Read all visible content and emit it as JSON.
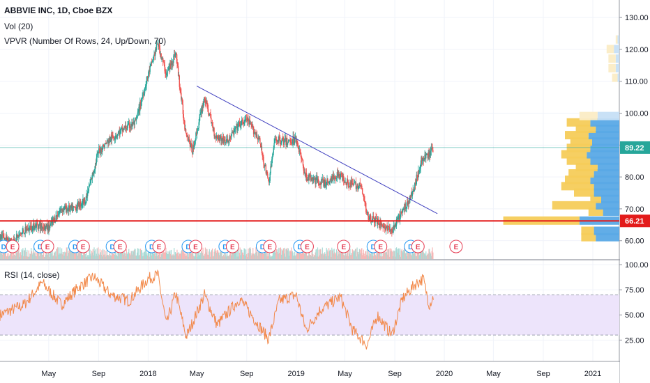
{
  "legend": {
    "title": "ABBVIE INC, 1D, Cboe BZX",
    "vol": "Vol (20)",
    "vpvr": "VPVR (Number Of Rows, 24, Up/Down, 70)",
    "rsi": "RSI (14, close)"
  },
  "colors": {
    "up": "#26a69a",
    "down": "#ef5350",
    "trendline": "#3f3fbf",
    "support": "#e31b1b",
    "last_price_line": "#26a69a",
    "rsi_line": "#f2894a",
    "rsi_band": "#ede4fb",
    "vp_up": "#5aa9e6",
    "vp_down": "#f5cc5a",
    "dividend": "#2196f3",
    "earnings": "#e53950"
  },
  "chart_data": [
    {
      "type": "candlestick",
      "name": "ABBVIE INC",
      "y_axis_ticks": [
        "60.00",
        "70.00",
        "80.00",
        "90.00",
        "100.00",
        "110.00",
        "120.00",
        "130.00"
      ],
      "ylim": [
        56,
        132
      ],
      "x_axis_ticks": [
        "May",
        "Sep",
        "2018",
        "May",
        "Sep",
        "2019",
        "May",
        "Sep",
        "2020",
        "May",
        "Sep",
        "2021"
      ],
      "price_path": [
        [
          "2017-01-01",
          61
        ],
        [
          "2017-02-01",
          60
        ],
        [
          "2017-03-01",
          63
        ],
        [
          "2017-04-01",
          65
        ],
        [
          "2017-05-01",
          64
        ],
        [
          "2017-06-01",
          70
        ],
        [
          "2017-07-01",
          70
        ],
        [
          "2017-08-01",
          73
        ],
        [
          "2017-09-01",
          88
        ],
        [
          "2017-10-01",
          92
        ],
        [
          "2017-11-01",
          95
        ],
        [
          "2017-12-01",
          97
        ],
        [
          "2018-01-01",
          112
        ],
        [
          "2018-01-25",
          122
        ],
        [
          "2018-02-15",
          112
        ],
        [
          "2018-03-10",
          119
        ],
        [
          "2018-04-01",
          96
        ],
        [
          "2018-04-20",
          88
        ],
        [
          "2018-05-20",
          105
        ],
        [
          "2018-06-15",
          93
        ],
        [
          "2018-07-15",
          91
        ],
        [
          "2018-08-10",
          96
        ],
        [
          "2018-09-01",
          98
        ],
        [
          "2018-10-01",
          92
        ],
        [
          "2018-10-25",
          78
        ],
        [
          "2018-11-10",
          92
        ],
        [
          "2018-12-10",
          91
        ],
        [
          "2019-01-01",
          92
        ],
        [
          "2019-01-25",
          80
        ],
        [
          "2019-02-15",
          79
        ],
        [
          "2019-03-15",
          78
        ],
        [
          "2019-04-15",
          81
        ],
        [
          "2019-05-10",
          78
        ],
        [
          "2019-06-10",
          77
        ],
        [
          "2019-06-25",
          68
        ],
        [
          "2019-07-20",
          66
        ],
        [
          "2019-08-10",
          64
        ],
        [
          "2019-08-25",
          63
        ],
        [
          "2019-09-15",
          68
        ],
        [
          "2019-10-15",
          75
        ],
        [
          "2019-11-05",
          85
        ],
        [
          "2019-11-25",
          87
        ],
        [
          "2019-12-05",
          89.2
        ]
      ],
      "last_price": "89.22",
      "support_level": "66.21",
      "support_value": 66.21,
      "trendline": [
        [
          "2018-05-01",
          108.5
        ],
        [
          "2019-12-15",
          68.5
        ]
      ],
      "event_markers": [
        {
          "date": "2017-01-10",
          "label": "D",
          "kind": "dividend"
        },
        {
          "date": "2017-02-01",
          "label": "E",
          "kind": "earnings"
        },
        {
          "date": "2017-04-10",
          "label": "D",
          "kind": "dividend"
        },
        {
          "date": "2017-04-28",
          "label": "E",
          "kind": "earnings"
        },
        {
          "date": "2017-07-05",
          "label": "D",
          "kind": "dividend"
        },
        {
          "date": "2017-07-25",
          "label": "E",
          "kind": "earnings"
        },
        {
          "date": "2017-10-05",
          "label": "D",
          "kind": "dividend"
        },
        {
          "date": "2017-10-24",
          "label": "E",
          "kind": "earnings"
        },
        {
          "date": "2018-01-10",
          "label": "D",
          "kind": "dividend"
        },
        {
          "date": "2018-01-28",
          "label": "E",
          "kind": "earnings"
        },
        {
          "date": "2018-04-10",
          "label": "D",
          "kind": "dividend"
        },
        {
          "date": "2018-04-28",
          "label": "E",
          "kind": "earnings"
        },
        {
          "date": "2018-07-10",
          "label": "D",
          "kind": "dividend"
        },
        {
          "date": "2018-07-28",
          "label": "E",
          "kind": "earnings"
        },
        {
          "date": "2018-10-10",
          "label": "D",
          "kind": "dividend"
        },
        {
          "date": "2018-10-28",
          "label": "E",
          "kind": "earnings"
        },
        {
          "date": "2019-01-10",
          "label": "D",
          "kind": "dividend"
        },
        {
          "date": "2019-01-28",
          "label": "E",
          "kind": "earnings"
        },
        {
          "date": "2019-04-28",
          "label": "E",
          "kind": "earnings"
        },
        {
          "date": "2019-07-10",
          "label": "D",
          "kind": "dividend"
        },
        {
          "date": "2019-07-28",
          "label": "E",
          "kind": "earnings"
        },
        {
          "date": "2019-10-10",
          "label": "D",
          "kind": "dividend"
        },
        {
          "date": "2019-10-28",
          "label": "E",
          "kind": "earnings"
        },
        {
          "date": "2020-01-30",
          "label": "E",
          "kind": "earnings"
        }
      ],
      "volume_profile": {
        "rows": [
          {
            "price": 61,
            "up": 13,
            "down": 8
          },
          {
            "price": 63,
            "up": 14,
            "down": 7
          },
          {
            "price": 66.2,
            "up": 22,
            "down": 42
          },
          {
            "price": 69,
            "up": 9,
            "down": 8
          },
          {
            "price": 71,
            "up": 13,
            "down": 24
          },
          {
            "price": 73,
            "up": 10,
            "down": 6
          },
          {
            "price": 75,
            "up": 14,
            "down": 11
          },
          {
            "price": 77,
            "up": 14,
            "down": 18
          },
          {
            "price": 79,
            "up": 16,
            "down": 14
          },
          {
            "price": 81,
            "up": 14,
            "down": 14
          },
          {
            "price": 83,
            "up": 12,
            "down": 12
          },
          {
            "price": 85,
            "up": 16,
            "down": 13
          },
          {
            "price": 87,
            "up": 18,
            "down": 14
          },
          {
            "price": 89,
            "up": 16,
            "down": 13
          },
          {
            "price": 91,
            "up": 15,
            "down": 12
          },
          {
            "price": 93,
            "up": 17,
            "down": 13
          },
          {
            "price": 95,
            "up": 13,
            "down": 11
          },
          {
            "price": 97,
            "up": 16,
            "down": 13
          },
          {
            "price": 99,
            "up": 12,
            "down": 10
          },
          {
            "price": 111,
            "up": 1,
            "down": 3
          },
          {
            "price": 114,
            "up": 2,
            "down": 4
          },
          {
            "price": 117,
            "up": 2,
            "down": 4
          },
          {
            "price": 120,
            "up": 3,
            "down": 4
          },
          {
            "price": 123,
            "up": 1,
            "down": 1
          }
        ]
      }
    },
    {
      "type": "line",
      "name": "RSI",
      "y_axis_ticks": [
        "25.00",
        "50.00",
        "75.00",
        "100.00"
      ],
      "ylim": [
        10,
        100
      ],
      "band": [
        30,
        70
      ],
      "rsi_path": [
        [
          "2017-01-01",
          50
        ],
        [
          "2017-03-01",
          60
        ],
        [
          "2017-04-15",
          82
        ],
        [
          "2017-06-01",
          60
        ],
        [
          "2017-07-15",
          78
        ],
        [
          "2017-08-20",
          88
        ],
        [
          "2017-10-01",
          70
        ],
        [
          "2017-11-15",
          64
        ],
        [
          "2018-01-01",
          86
        ],
        [
          "2018-01-25",
          90
        ],
        [
          "2018-02-15",
          40
        ],
        [
          "2018-03-10",
          72
        ],
        [
          "2018-04-05",
          28
        ],
        [
          "2018-05-20",
          70
        ],
        [
          "2018-06-20",
          40
        ],
        [
          "2018-08-15",
          66
        ],
        [
          "2018-10-25",
          26
        ],
        [
          "2018-11-20",
          64
        ],
        [
          "2019-01-01",
          70
        ],
        [
          "2019-01-25",
          35
        ],
        [
          "2019-03-01",
          55
        ],
        [
          "2019-04-20",
          68
        ],
        [
          "2019-05-20",
          35
        ],
        [
          "2019-06-25",
          20
        ],
        [
          "2019-07-20",
          50
        ],
        [
          "2019-08-25",
          30
        ],
        [
          "2019-09-20",
          66
        ],
        [
          "2019-10-20",
          80
        ],
        [
          "2019-11-10",
          86
        ],
        [
          "2019-11-25",
          60
        ],
        [
          "2019-12-05",
          68
        ]
      ]
    }
  ]
}
